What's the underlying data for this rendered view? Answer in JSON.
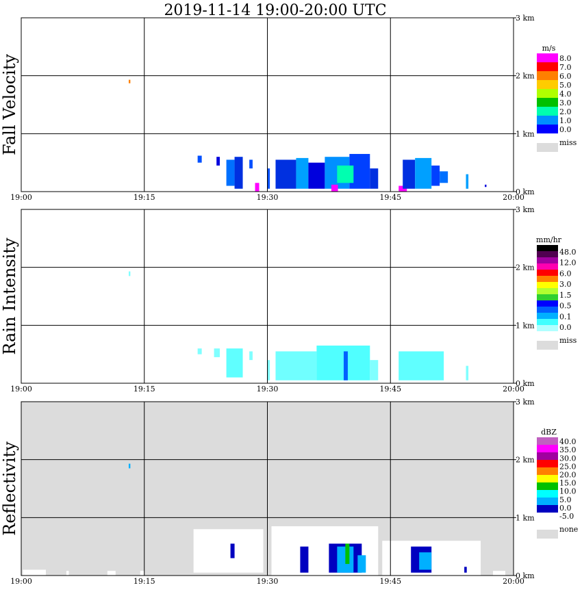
{
  "chart_data": {
    "type": "heatmap",
    "title": "2019-11-14   19:00-20:00 UTC",
    "x_ticks": [
      "19:00",
      "19:15",
      "19:30",
      "19:45",
      "20:00"
    ],
    "y_ticks": [
      "0 km",
      "1 km",
      "2 km",
      "3 km"
    ],
    "x_unit_minutes": [
      0,
      60
    ],
    "y_range_km": [
      0,
      3.0
    ],
    "grid": true,
    "panels": [
      {
        "id": "fall-velocity",
        "ylabel": "Fall Velocity",
        "background": "#ffffff",
        "legend": {
          "unit": "m/s",
          "labels": [
            "8.0",
            "7.0",
            "6.0",
            "5.0",
            "4.0",
            "3.0",
            "2.0",
            "1.0",
            "0.0"
          ],
          "colors": [
            "#ff00ff",
            "#ff0000",
            "#ff8000",
            "#ffcc00",
            "#b0ff00",
            "#00c000",
            "#00ffb0",
            "#0090ff",
            "#0000ff"
          ],
          "miss_label": "miss",
          "miss_color": "#dcdcdc"
        },
        "echo_regions": [
          {
            "t": [
              21.5,
              22.0
            ],
            "h": [
              0.5,
              0.62
            ],
            "color": "#0050ff"
          },
          {
            "t": [
              23.8,
              24.2
            ],
            "h": [
              0.45,
              0.6
            ],
            "color": "#0000dd"
          },
          {
            "t": [
              25.0,
              26.0
            ],
            "h": [
              0.1,
              0.55
            ],
            "color": "#0070ff"
          },
          {
            "t": [
              26.0,
              27.0
            ],
            "h": [
              0.05,
              0.6
            ],
            "color": "#0030e0"
          },
          {
            "t": [
              27.8,
              28.2
            ],
            "h": [
              0.4,
              0.55
            ],
            "color": "#0050ff"
          },
          {
            "t": [
              28.5,
              29.0
            ],
            "h": [
              0.0,
              0.15
            ],
            "color": "#ff00ff"
          },
          {
            "t": [
              30.0,
              30.3
            ],
            "h": [
              0.05,
              0.4
            ],
            "color": "#0050ff"
          },
          {
            "t": [
              31.0,
              33.5
            ],
            "h": [
              0.05,
              0.55
            ],
            "color": "#0030e0"
          },
          {
            "t": [
              33.5,
              35.0
            ],
            "h": [
              0.05,
              0.58
            ],
            "color": "#00a0ff"
          },
          {
            "t": [
              35.0,
              37.0
            ],
            "h": [
              0.05,
              0.5
            ],
            "color": "#0000dd"
          },
          {
            "t": [
              37.0,
              40.0
            ],
            "h": [
              0.05,
              0.6
            ],
            "color": "#0090ff"
          },
          {
            "t": [
              37.8,
              38.6
            ],
            "h": [
              0.0,
              0.12
            ],
            "color": "#ff00ff"
          },
          {
            "t": [
              40.0,
              42.5
            ],
            "h": [
              0.05,
              0.65
            ],
            "color": "#0040ff"
          },
          {
            "t": [
              38.5,
              40.5
            ],
            "h": [
              0.15,
              0.45
            ],
            "color": "#00ffb0"
          },
          {
            "t": [
              42.5,
              43.5
            ],
            "h": [
              0.05,
              0.4
            ],
            "color": "#0030e0"
          },
          {
            "t": [
              46.0,
              47.0
            ],
            "h": [
              0.0,
              0.1
            ],
            "color": "#ff00ff"
          },
          {
            "t": [
              46.5,
              48.0
            ],
            "h": [
              0.05,
              0.55
            ],
            "color": "#0030e0"
          },
          {
            "t": [
              48.0,
              50.0
            ],
            "h": [
              0.05,
              0.58
            ],
            "color": "#00a0ff"
          },
          {
            "t": [
              50.0,
              51.0
            ],
            "h": [
              0.1,
              0.45
            ],
            "color": "#0040ff"
          },
          {
            "t": [
              51.0,
              52.0
            ],
            "h": [
              0.15,
              0.35
            ],
            "color": "#0070ff"
          },
          {
            "t": [
              54.2,
              54.5
            ],
            "h": [
              0.05,
              0.3
            ],
            "color": "#00a0ff"
          },
          {
            "t": [
              56.5,
              56.7
            ],
            "h": [
              0.08,
              0.12
            ],
            "color": "#0000dd"
          },
          {
            "t": [
              13.1,
              13.3
            ],
            "h": [
              1.87,
              1.93
            ],
            "color": "#ff8000"
          }
        ]
      },
      {
        "id": "rain-intensity",
        "ylabel": "Rain Intensity",
        "background": "#ffffff",
        "legend": {
          "unit": "mm/hr",
          "labels": [
            "48.0",
            "12.0",
            "6.0",
            "3.0",
            "1.5",
            "0.5",
            "0.1",
            "0.0"
          ],
          "colors": [
            "#000000",
            "#500050",
            "#a000a0",
            "#ff00b0",
            "#ff0000",
            "#ff8000",
            "#ffff00",
            "#b0ff30",
            "#30d030",
            "#0000ff",
            "#0060ff",
            "#00b0ff",
            "#40ffff",
            "#b0ffff"
          ],
          "miss_label": "miss",
          "miss_color": "#dcdcdc"
        },
        "echo_regions": [
          {
            "t": [
              21.5,
              22.0
            ],
            "h": [
              0.5,
              0.6
            ],
            "color": "#80ffff"
          },
          {
            "t": [
              23.5,
              24.2
            ],
            "h": [
              0.45,
              0.6
            ],
            "color": "#80ffff"
          },
          {
            "t": [
              25.0,
              27.0
            ],
            "h": [
              0.1,
              0.6
            ],
            "color": "#60ffff"
          },
          {
            "t": [
              27.8,
              28.2
            ],
            "h": [
              0.4,
              0.55
            ],
            "color": "#80ffff"
          },
          {
            "t": [
              30.0,
              30.3
            ],
            "h": [
              0.05,
              0.4
            ],
            "color": "#80ffff"
          },
          {
            "t": [
              31.0,
              36.0
            ],
            "h": [
              0.05,
              0.55
            ],
            "color": "#70ffff"
          },
          {
            "t": [
              36.0,
              42.5
            ],
            "h": [
              0.05,
              0.65
            ],
            "color": "#50ffff"
          },
          {
            "t": [
              39.3,
              39.8
            ],
            "h": [
              0.05,
              0.55
            ],
            "color": "#0060ff"
          },
          {
            "t": [
              42.5,
              43.5
            ],
            "h": [
              0.05,
              0.4
            ],
            "color": "#80ffff"
          },
          {
            "t": [
              46.0,
              51.5
            ],
            "h": [
              0.05,
              0.55
            ],
            "color": "#60ffff"
          },
          {
            "t": [
              54.2,
              54.5
            ],
            "h": [
              0.05,
              0.3
            ],
            "color": "#80ffff"
          },
          {
            "t": [
              13.1,
              13.3
            ],
            "h": [
              1.85,
              1.93
            ],
            "color": "#80ffff"
          }
        ]
      },
      {
        "id": "reflectivity",
        "ylabel": "Reflectivity",
        "background": "#dcdcdc",
        "legend": {
          "unit": "dBZ",
          "labels": [
            "40.0",
            "35.0",
            "30.0",
            "25.0",
            "20.0",
            "15.0",
            "10.0",
            "5.0",
            "0.0",
            "-5.0"
          ],
          "colors": [
            "#c060c0",
            "#ff00ff",
            "#a000a0",
            "#ff0000",
            "#ff8000",
            "#ffff00",
            "#00c000",
            "#00ffff",
            "#00b0ff",
            "#0000c0",
            "#ffffff"
          ],
          "miss_label": "none",
          "miss_color": "#dcdcdc"
        },
        "echo_regions": [
          {
            "t": [
              0.2,
              3.0
            ],
            "h": [
              0.0,
              0.1
            ],
            "color": "#ffffff"
          },
          {
            "t": [
              5.5,
              5.8
            ],
            "h": [
              0.0,
              0.08
            ],
            "color": "#ffffff"
          },
          {
            "t": [
              10.5,
              11.5
            ],
            "h": [
              0.0,
              0.08
            ],
            "color": "#ffffff"
          },
          {
            "t": [
              14.5,
              15.0
            ],
            "h": [
              0.0,
              0.08
            ],
            "color": "#ffffff"
          },
          {
            "t": [
              21.0,
              29.5
            ],
            "h": [
              0.05,
              0.8
            ],
            "color": "#ffffff"
          },
          {
            "t": [
              25.5,
              26.0
            ],
            "h": [
              0.3,
              0.55
            ],
            "color": "#0000c0"
          },
          {
            "t": [
              30.5,
              43.5
            ],
            "h": [
              0.0,
              0.85
            ],
            "color": "#ffffff"
          },
          {
            "t": [
              34.0,
              35.0
            ],
            "h": [
              0.05,
              0.5
            ],
            "color": "#0000c0"
          },
          {
            "t": [
              37.5,
              41.5
            ],
            "h": [
              0.05,
              0.55
            ],
            "color": "#0000c0"
          },
          {
            "t": [
              38.5,
              40.5
            ],
            "h": [
              0.05,
              0.5
            ],
            "color": "#00b0ff"
          },
          {
            "t": [
              39.5,
              40.0
            ],
            "h": [
              0.2,
              0.55
            ],
            "color": "#00c000"
          },
          {
            "t": [
              41.0,
              42.0
            ],
            "h": [
              0.05,
              0.35
            ],
            "color": "#00b0ff"
          },
          {
            "t": [
              44.0,
              56.0
            ],
            "h": [
              0.0,
              0.6
            ],
            "color": "#ffffff"
          },
          {
            "t": [
              47.5,
              50.0
            ],
            "h": [
              0.05,
              0.5
            ],
            "color": "#0000c0"
          },
          {
            "t": [
              48.5,
              50.0
            ],
            "h": [
              0.1,
              0.4
            ],
            "color": "#00b0ff"
          },
          {
            "t": [
              54.0,
              54.3
            ],
            "h": [
              0.05,
              0.15
            ],
            "color": "#0000c0"
          },
          {
            "t": [
              57.5,
              59.0
            ],
            "h": [
              0.0,
              0.08
            ],
            "color": "#ffffff"
          },
          {
            "t": [
              13.1,
              13.3
            ],
            "h": [
              1.85,
              1.93
            ],
            "color": "#00b0ff"
          }
        ]
      }
    ]
  }
}
